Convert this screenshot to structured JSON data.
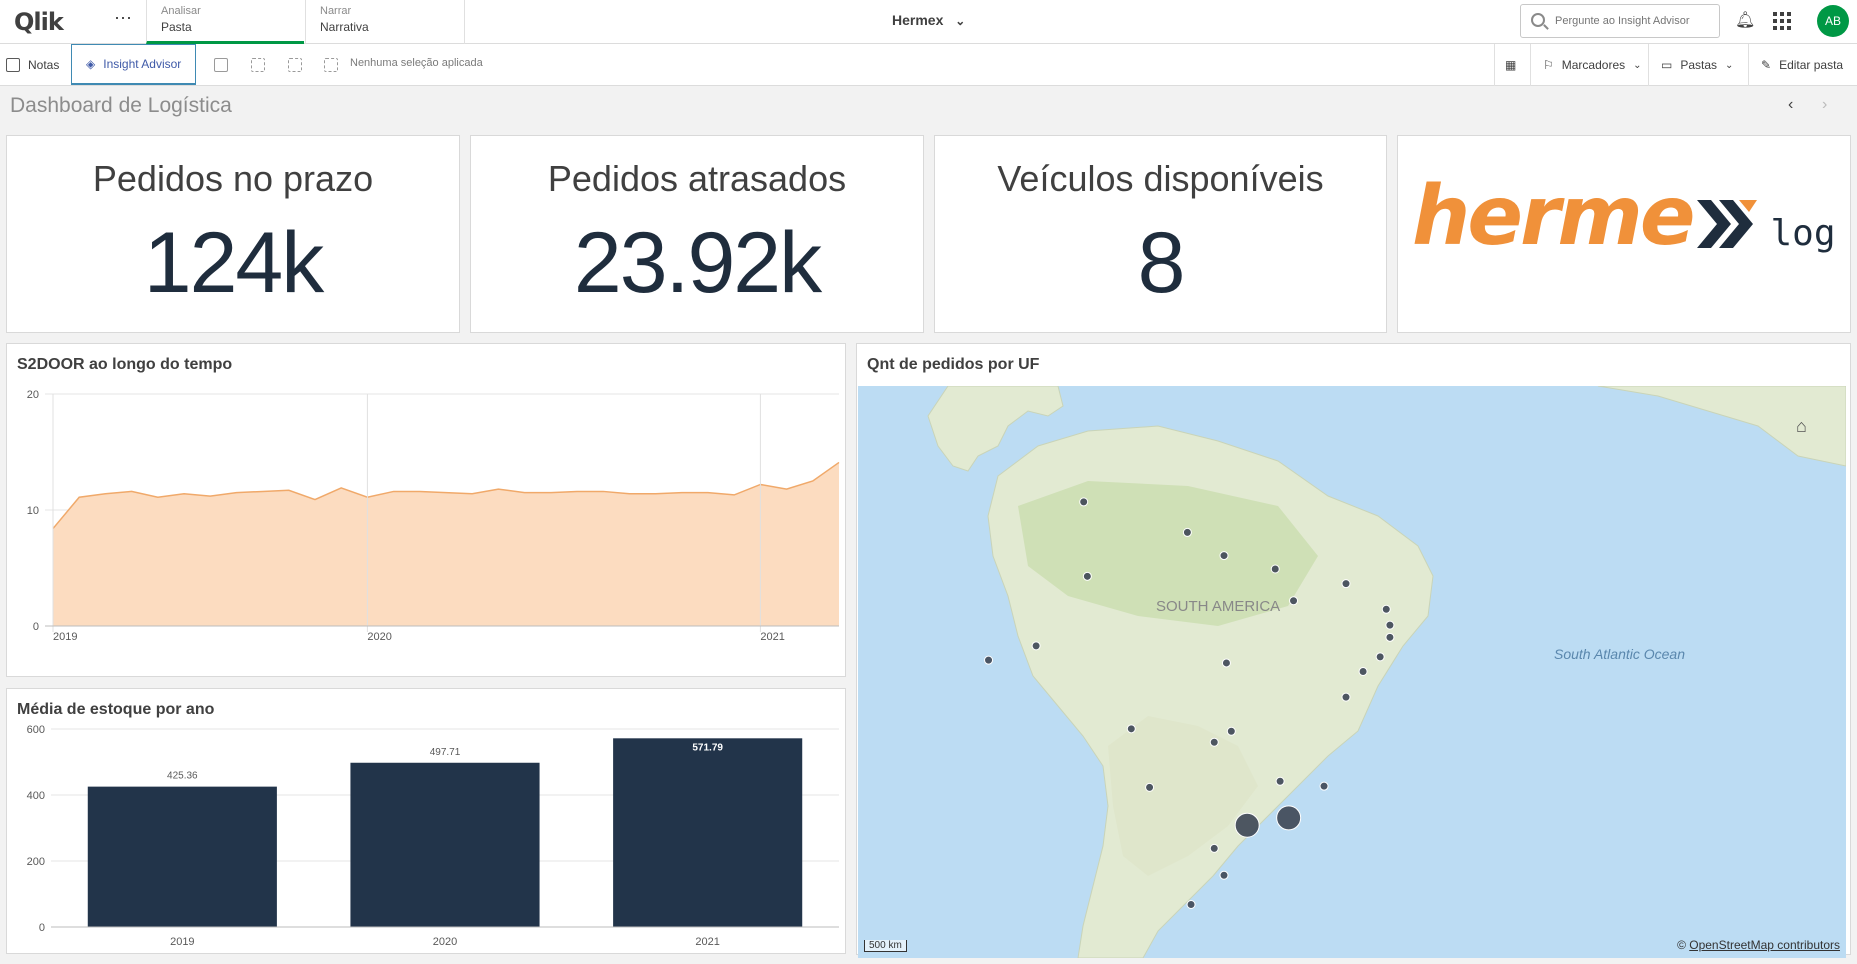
{
  "top_bar": {
    "logo_text": "Qlik",
    "more_icon": "more-horizontal-icon",
    "tabs": [
      {
        "small": "Analisar",
        "main": "Pasta"
      },
      {
        "small": "Narrar",
        "main": "Narrativa"
      }
    ],
    "app_name": "Hermex",
    "search_placeholder": "Pergunte ao Insight Advisor",
    "avatar_initials": "AB"
  },
  "toolbar": {
    "notes_label": "Notas",
    "insight_label": "Insight Advisor",
    "no_selection": "Nenhuma seleção aplicada",
    "bookmarks_label": "Marcadores",
    "sheets_label": "Pastas",
    "edit_label": "Editar pasta"
  },
  "sheet": {
    "title": "Dashboard de Logística"
  },
  "kpis": [
    {
      "title": "Pedidos no prazo",
      "value": "124k"
    },
    {
      "title": "Pedidos atrasados",
      "value": "23.92k"
    },
    {
      "title": "Veículos disponíveis",
      "value": "8"
    }
  ],
  "brand": {
    "word": "herme",
    "suffix": "log"
  },
  "colors": {
    "accent_green": "#009845",
    "area_fill": "#fcdcc0",
    "area_line": "#f0a96a",
    "bar_color": "#22344a",
    "brand_orange": "#f0913a",
    "dark_navy": "#1f2d3d",
    "map_ocean": "#bcdcf3",
    "map_land": "#e2ead2",
    "map_dot": "#3d4654"
  },
  "chart_data": [
    {
      "type": "area",
      "title": "S2DOOR ao longo do tempo",
      "x_ticks": [
        "2019",
        "2020",
        "2021"
      ],
      "ylim": [
        0,
        20
      ],
      "y_ticks": [
        "0",
        "10",
        "20"
      ],
      "values": [
        8.4,
        11.1,
        11.4,
        11.6,
        11.1,
        11.4,
        11.2,
        11.5,
        11.6,
        11.7,
        10.9,
        11.9,
        11.1,
        11.6,
        11.6,
        11.5,
        11.4,
        11.8,
        11.5,
        11.5,
        11.6,
        11.6,
        11.4,
        11.4,
        11.5,
        11.5,
        11.3,
        12.2,
        11.8,
        12.5,
        14.1
      ]
    },
    {
      "type": "bar",
      "title": "Média de estoque por ano",
      "categories": [
        "2019",
        "2020",
        "2021"
      ],
      "values": [
        425.36,
        497.71,
        571.79
      ],
      "value_labels": [
        "425.36",
        "497.71",
        "571.79"
      ],
      "ylim": [
        0,
        600
      ],
      "y_ticks": [
        "0",
        "200",
        "400",
        "600"
      ]
    }
  ],
  "map": {
    "title": "Qnt de pedidos por UF",
    "continent_label": "SOUTH AMERICA",
    "ocean_label": "South Atlantic Ocean",
    "scale_label": "500 km",
    "attribution_prefix": "©",
    "attribution_link": "OpenStreetMap contributors",
    "points": [
      {
        "lon": -60.0,
        "lat": 3.0,
        "size": "small"
      },
      {
        "lon": -51.5,
        "lat": 0.5,
        "size": "small"
      },
      {
        "lon": -48.5,
        "lat": -1.4,
        "size": "small"
      },
      {
        "lon": -44.3,
        "lat": -2.5,
        "size": "small"
      },
      {
        "lon": -38.5,
        "lat": -3.7,
        "size": "small"
      },
      {
        "lon": -42.8,
        "lat": -5.1,
        "size": "small"
      },
      {
        "lon": -35.2,
        "lat": -5.8,
        "size": "small"
      },
      {
        "lon": -34.9,
        "lat": -7.1,
        "size": "small"
      },
      {
        "lon": -34.9,
        "lat": -8.1,
        "size": "small"
      },
      {
        "lon": -35.7,
        "lat": -9.7,
        "size": "small"
      },
      {
        "lon": -37.1,
        "lat": -10.9,
        "size": "small"
      },
      {
        "lon": -38.5,
        "lat": -13.0,
        "size": "small"
      },
      {
        "lon": -59.7,
        "lat": -3.1,
        "size": "small"
      },
      {
        "lon": -67.8,
        "lat": -9.97,
        "size": "small"
      },
      {
        "lon": -63.9,
        "lat": -8.8,
        "size": "small"
      },
      {
        "lon": -48.3,
        "lat": -10.2,
        "size": "small"
      },
      {
        "lon": -56.1,
        "lat": -15.6,
        "size": "small"
      },
      {
        "lon": -49.3,
        "lat": -16.7,
        "size": "small"
      },
      {
        "lon": -47.9,
        "lat": -15.8,
        "size": "small"
      },
      {
        "lon": -54.6,
        "lat": -20.4,
        "size": "small"
      },
      {
        "lon": -43.9,
        "lat": -19.9,
        "size": "small"
      },
      {
        "lon": -40.3,
        "lat": -20.3,
        "size": "small"
      },
      {
        "lon": -46.6,
        "lat": -23.5,
        "size": "large"
      },
      {
        "lon": -43.2,
        "lat": -22.9,
        "size": "large"
      },
      {
        "lon": -49.3,
        "lat": -25.4,
        "size": "small"
      },
      {
        "lon": -48.5,
        "lat": -27.6,
        "size": "small"
      },
      {
        "lon": -51.2,
        "lat": -30.0,
        "size": "small"
      }
    ]
  }
}
